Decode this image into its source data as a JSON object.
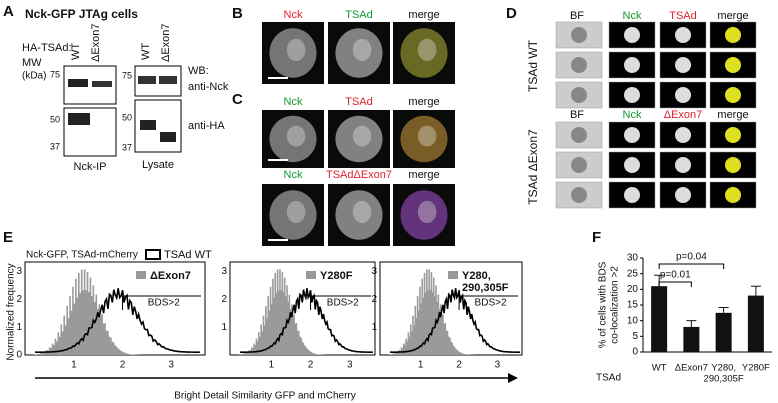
{
  "panel_a": {
    "label": "A",
    "title": "Nck-GFP JTAg cells",
    "ha_tsad": "HA-TSAd:",
    "mw": "MW",
    "kda": "(kDa)",
    "lanes_ip": [
      "WT",
      "ΔExon7"
    ],
    "lanes_lysate": [
      "WT",
      "ΔExon7"
    ],
    "mw_ip": [
      "75",
      "50",
      "37"
    ],
    "mw_lysate": [
      "75",
      "50",
      "37"
    ],
    "wb": "WB:",
    "antibodies": [
      "anti-Nck",
      "anti-HA"
    ],
    "groups": [
      "Nck-IP",
      "Lysate"
    ]
  },
  "panel_b": {
    "label": "B",
    "columns": [
      "Nck",
      "TSAd",
      "merge"
    ]
  },
  "panel_c": {
    "label": "C",
    "row1": [
      "Nck",
      "TSAd",
      "merge"
    ],
    "row2": [
      "Nck",
      "TSAdΔExon7",
      "merge"
    ]
  },
  "panel_d": {
    "label": "D",
    "columns_wt": [
      "BF",
      "Nck",
      "TSAd",
      "merge"
    ],
    "columns_ex7": [
      "BF",
      "Nck",
      "ΔExon7",
      "merge"
    ],
    "rows": [
      "TSAd WT",
      "TSAd ΔExon7"
    ]
  },
  "panel_e": {
    "label": "E",
    "subtitle": "Nck-GFP, TSAd-mCherry",
    "legend": "TSAd WT",
    "y_label": "Normalized frequency",
    "x_label": "Bright Detail Similarity GFP and mCherry",
    "plots": [
      {
        "name_lines": [
          "ΔExon7"
        ],
        "threshold": "BDS>2",
        "yticks": [
          "0",
          "1",
          "2",
          "3"
        ],
        "xticks": [
          "1",
          "2",
          "3"
        ]
      },
      {
        "name_lines": [
          "Y280F"
        ],
        "threshold": "BDS>2",
        "yticks": [
          "1",
          "2",
          "3"
        ],
        "xticks": [
          "1",
          "2",
          "3"
        ]
      },
      {
        "name_lines": [
          "Y280,",
          "290,305F"
        ],
        "threshold": "BDS>2",
        "yticks": [
          "1",
          "2",
          "3"
        ],
        "xticks": [
          "1",
          "2",
          "3"
        ]
      }
    ]
  },
  "panel_f": {
    "label": "F",
    "y_label_lines": [
      "% of cells with BDS",
      "co-localization >2"
    ],
    "group_label": "TSAd",
    "categories": [
      [
        "WT"
      ],
      [
        "ΔExon7"
      ],
      [
        "Y280,",
        "290,305F"
      ],
      [
        "Y280F"
      ]
    ],
    "values": [
      21,
      8,
      12.5,
      18
    ],
    "errors": [
      3.5,
      2,
      1.7,
      3
    ],
    "ylim": [
      0,
      30
    ],
    "yticks": [
      0,
      5,
      10,
      15,
      20,
      25,
      30
    ],
    "annotations": [
      "p=0.01",
      "p=0.04"
    ]
  }
}
